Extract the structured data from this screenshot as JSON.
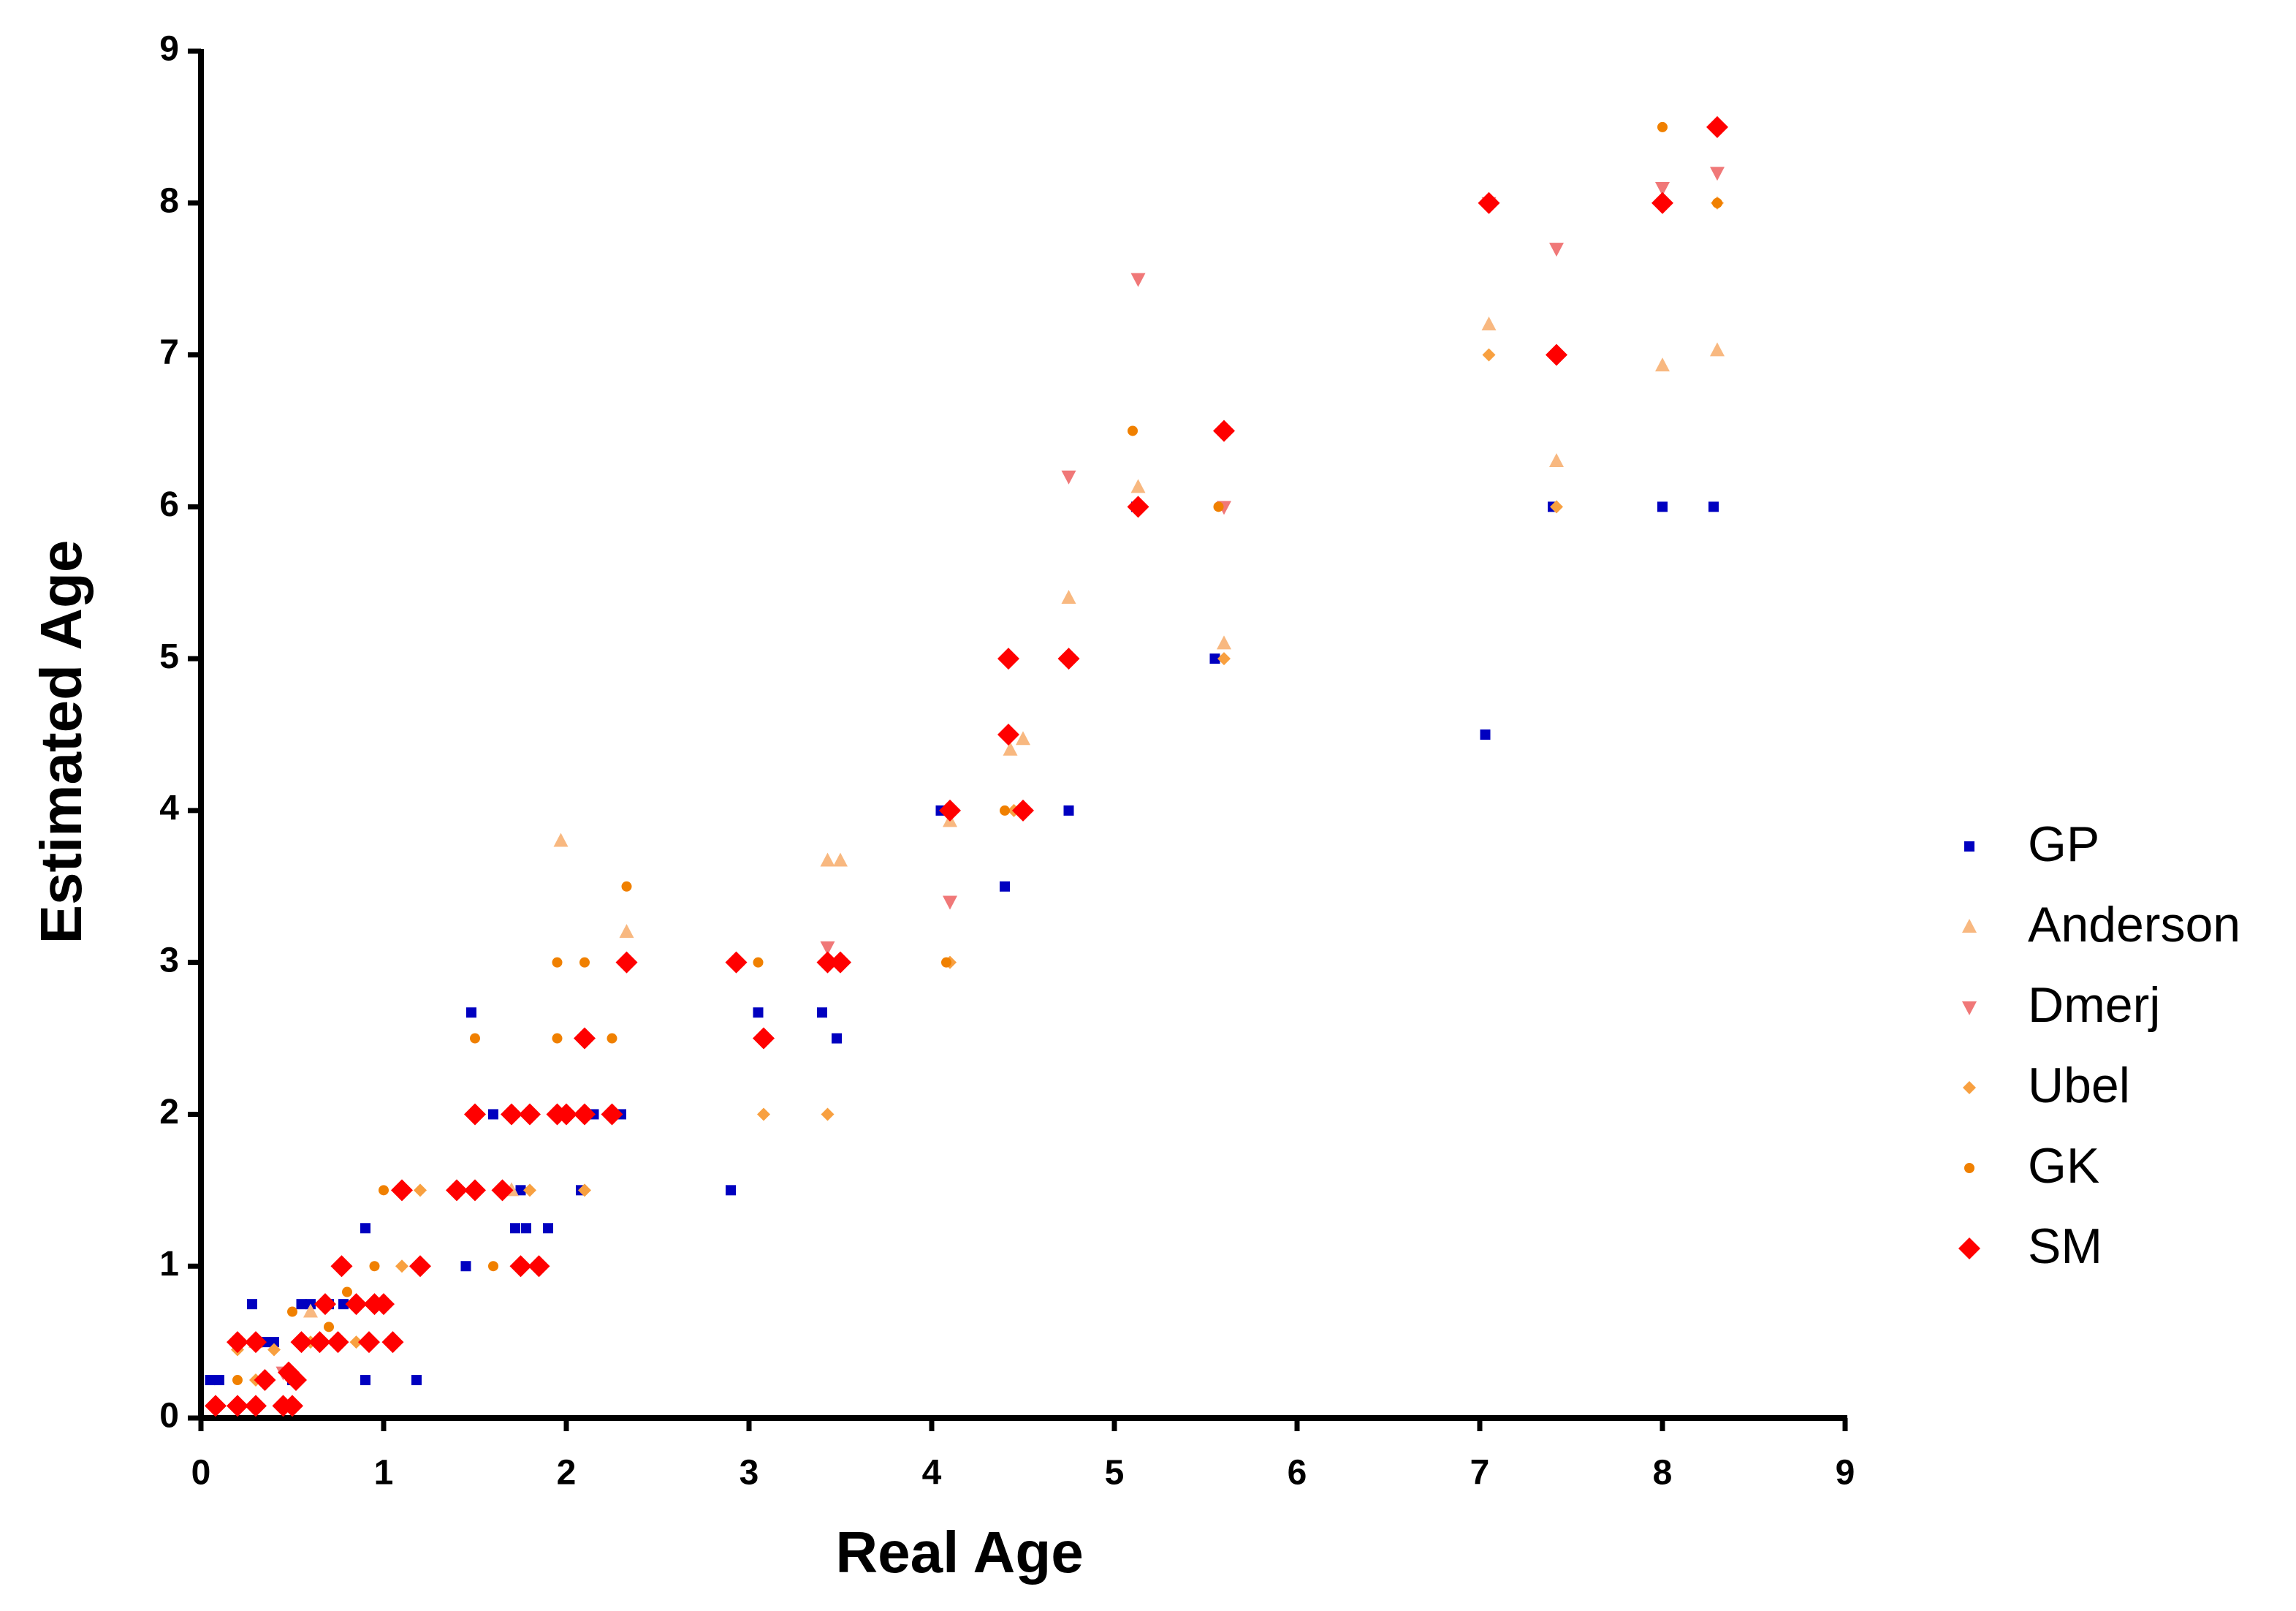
{
  "chart_data": {
    "type": "scatter",
    "x_label": "Real Age",
    "y_label": "Estimated Age",
    "xlim": [
      0,
      9
    ],
    "ylim": [
      0,
      9
    ],
    "xticks": [
      0,
      1,
      2,
      3,
      4,
      5,
      6,
      7,
      8,
      9
    ],
    "yticks": [
      0,
      1,
      2,
      3,
      4,
      5,
      6,
      7,
      8,
      9
    ],
    "legend": "right",
    "series": [
      {
        "name": "GP",
        "color": "#0000c0",
        "marker": "square",
        "x": [
          0.05,
          0.1,
          0.28,
          0.35,
          0.4,
          0.5,
          0.55,
          0.6,
          0.7,
          0.78,
          0.9,
          0.9,
          1.18,
          1.1,
          1.45,
          1.48,
          1.6,
          1.72,
          1.78,
          1.75,
          1.9,
          2.08,
          2.15,
          2.3,
          2.9,
          3.05,
          3.4,
          3.48,
          4.05,
          4.4,
          4.75,
          5.12,
          5.55,
          7.03,
          7.4,
          8,
          8.28
        ],
        "values": [
          0.25,
          0.25,
          0.75,
          0.5,
          0.5,
          0.25,
          0.75,
          0.75,
          0.75,
          0.75,
          1.25,
          0.25,
          0.25,
          1.5,
          1,
          2.67,
          2,
          1.25,
          1.25,
          1.5,
          1.25,
          1.5,
          2,
          2,
          1.5,
          2.67,
          2.67,
          2.5,
          4,
          3.5,
          4,
          6,
          5,
          4.5,
          6,
          6,
          6
        ]
      },
      {
        "name": "Anderson",
        "color": "#f8b880",
        "marker": "triangle-up",
        "x": [
          0.3,
          0.6,
          1.7,
          1.97,
          2.33,
          3.43,
          3.5,
          4.1,
          4.43,
          4.5,
          4.75,
          5.13,
          5.6,
          7.05,
          7.42,
          8,
          8.3
        ],
        "values": [
          0.5,
          0.7,
          1.5,
          3.8,
          3.2,
          3.67,
          3.67,
          3.93,
          4.4,
          4.47,
          5.4,
          6.13,
          5.1,
          7.2,
          6.3,
          6.93,
          7.03
        ]
      },
      {
        "name": "Dmerj",
        "color": "#f07878",
        "marker": "triangle-down",
        "x": [
          0.45,
          3.43,
          4.1,
          4.75,
          5.13,
          5.6,
          7.05,
          7.42,
          8,
          8.3
        ],
        "values": [
          0.3,
          3.1,
          3.4,
          6.2,
          7.5,
          6,
          8,
          7.7,
          8.1,
          8.2
        ]
      },
      {
        "name": "Ubel",
        "color": "#f8a040",
        "marker": "diamond",
        "x": [
          0.2,
          0.3,
          0.4,
          0.6,
          0.85,
          1.1,
          1.2,
          1.8,
          2.1,
          3.08,
          3.43,
          4.1,
          4.45,
          5.6,
          7.05,
          7.42,
          8.3
        ],
        "values": [
          0.45,
          0.25,
          0.45,
          0.5,
          0.5,
          1,
          1.5,
          1.5,
          1.5,
          2,
          2,
          3,
          4,
          5,
          7,
          6,
          8
        ]
      },
      {
        "name": "GK",
        "color": "#f08000",
        "marker": "circle",
        "x": [
          0.2,
          0.5,
          0.7,
          0.8,
          0.95,
          1,
          1.5,
          1.6,
          1.95,
          1.95,
          2.1,
          2.25,
          2.33,
          2.95,
          3.05,
          4.08,
          4.4,
          5.1,
          5.57,
          7.05,
          8,
          8.3
        ],
        "values": [
          0.25,
          0.7,
          0.6,
          0.83,
          1,
          1.5,
          2.5,
          1,
          2.5,
          3,
          3,
          2.5,
          3.5,
          3,
          3,
          3,
          4,
          6.5,
          6,
          8,
          8.5,
          8
        ]
      },
      {
        "name": "SM",
        "color": "#ff0000",
        "marker": "big-diamond",
        "x": [
          0.08,
          0.2,
          0.3,
          0.45,
          0.5,
          0.2,
          0.3,
          0.35,
          0.48,
          0.52,
          0.55,
          0.65,
          0.68,
          0.75,
          0.77,
          0.85,
          0.95,
          1,
          0.92,
          1.05,
          1.1,
          1.2,
          1.4,
          1.5,
          1.5,
          1.65,
          1.7,
          1.8,
          1.75,
          1.85,
          1.95,
          2,
          2.1,
          2.1,
          2.25,
          2.33,
          2.93,
          3.08,
          3.43,
          3.5,
          4.1,
          4.42,
          4.42,
          4.5,
          4.75,
          5.13,
          5.6,
          7.05,
          7.42,
          8,
          8.3
        ],
        "values": [
          0.08,
          0.08,
          0.08,
          0.08,
          0.08,
          0.5,
          0.5,
          0.25,
          0.3,
          0.25,
          0.5,
          0.5,
          0.75,
          0.5,
          1,
          0.75,
          0.75,
          0.75,
          0.5,
          0.5,
          1.5,
          1,
          1.5,
          1.5,
          2,
          1.5,
          2,
          2,
          1,
          1,
          2,
          2,
          2,
          2.5,
          2,
          3,
          3,
          2.5,
          3,
          3,
          4,
          4.5,
          5,
          4,
          5,
          6,
          6.5,
          8,
          7,
          8,
          8.5
        ]
      }
    ]
  }
}
